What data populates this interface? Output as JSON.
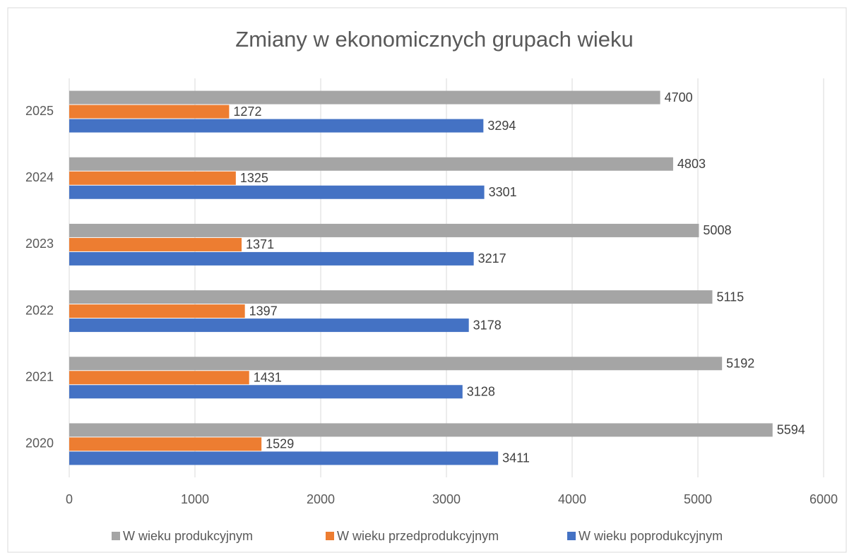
{
  "chart_data": {
    "type": "bar",
    "orientation": "horizontal",
    "title": "Zmiany w ekonomicznych grupach wieku",
    "categories": [
      "2020",
      "2021",
      "2022",
      "2023",
      "2024",
      "2025"
    ],
    "series": [
      {
        "name": "W wieku produkcyjnym",
        "color": "#a5a5a5",
        "values": [
          5594,
          5192,
          5115,
          5008,
          4803,
          4700
        ]
      },
      {
        "name": "W wieku przedprodukcyjnym",
        "color": "#ed7d31",
        "values": [
          1529,
          1431,
          1397,
          1371,
          1325,
          1272
        ]
      },
      {
        "name": "W wieku poprodukcyjnym",
        "color": "#4472c4",
        "values": [
          3411,
          3128,
          3178,
          3217,
          3301,
          3294
        ]
      }
    ],
    "xlim": [
      0,
      6000
    ],
    "xticks": [
      0,
      1000,
      2000,
      3000,
      4000,
      5000,
      6000
    ],
    "grid": true,
    "legend": "bottom"
  }
}
